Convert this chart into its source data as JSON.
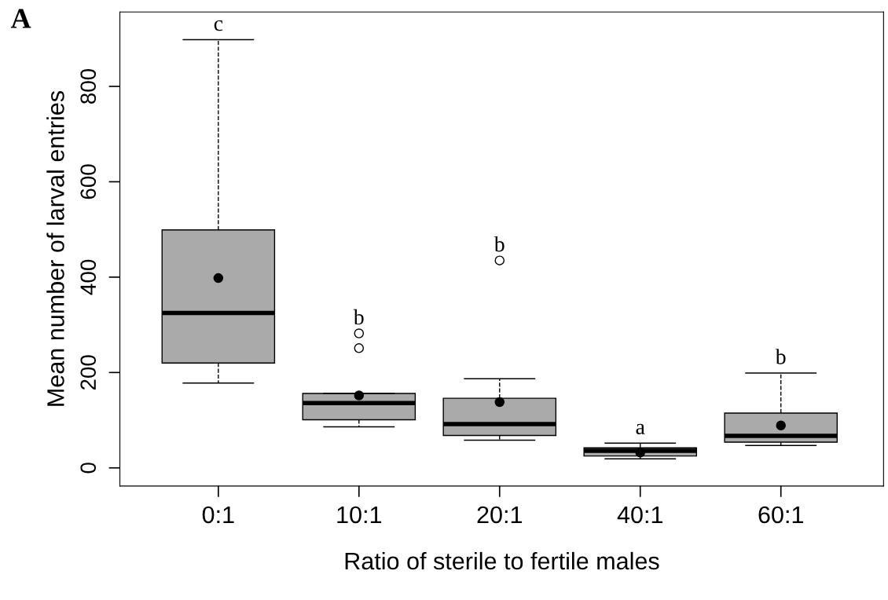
{
  "chart_data": {
    "type": "box",
    "xlabel": "Ratio of sterile to fertile males",
    "ylabel": "Mean number of larval entries",
    "categories": [
      "0:1",
      "10:1",
      "20:1",
      "40:1",
      "60:1"
    ],
    "boxes": [
      {
        "low": 178,
        "q1": 220,
        "median": 325,
        "q3": 499,
        "high": 898,
        "mean": 398
      },
      {
        "low": 86,
        "q1": 101,
        "median": 136,
        "q3": 156,
        "high": 156,
        "mean": 152,
        "outliers": [
          251,
          282
        ]
      },
      {
        "low": 58,
        "q1": 68,
        "median": 92,
        "q3": 146,
        "high": 187,
        "mean": 138,
        "outliers": [
          435
        ]
      },
      {
        "low": 19,
        "q1": 25,
        "median": 36,
        "q3": 42,
        "high": 52,
        "mean": 32
      },
      {
        "low": 47,
        "q1": 54,
        "median": 67,
        "q3": 115,
        "high": 199,
        "mean": 89
      }
    ],
    "color": "#aaaaaa",
    "line_style": "dashed",
    "ylim": [
      -38,
      956
    ],
    "yticks": [
      0,
      200,
      400,
      600,
      800
    ],
    "grid": false,
    "legend": false,
    "annotations": [
      "A",
      "c",
      "b",
      "b",
      "a",
      "b"
    ]
  }
}
